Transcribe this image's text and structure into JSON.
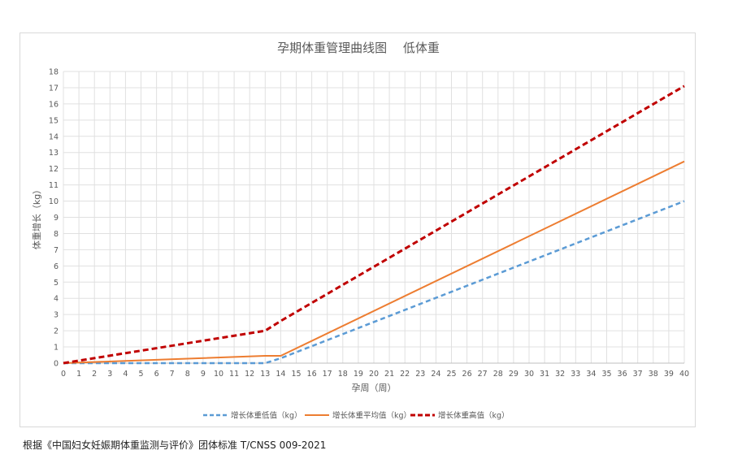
{
  "chart_data": {
    "type": "line",
    "title": "孕期体重管理曲线图　 低体重",
    "xlabel": "孕周（周）",
    "ylabel": "体重增长（kg）",
    "xlim": [
      0,
      40
    ],
    "ylim": [
      0,
      18
    ],
    "x_ticks": [
      0,
      1,
      2,
      3,
      4,
      5,
      6,
      7,
      8,
      9,
      10,
      11,
      12,
      13,
      14,
      15,
      16,
      17,
      18,
      19,
      20,
      21,
      22,
      23,
      24,
      25,
      26,
      27,
      28,
      29,
      30,
      31,
      32,
      33,
      34,
      35,
      36,
      37,
      38,
      39,
      40
    ],
    "y_ticks": [
      0,
      1,
      2,
      3,
      4,
      5,
      6,
      7,
      8,
      9,
      10,
      11,
      12,
      13,
      14,
      15,
      16,
      17,
      18
    ],
    "grid": true,
    "legend_position": "bottom",
    "series": [
      {
        "name": "增长体重低值（kg）",
        "color": "#5b9bd5",
        "style": "dashed",
        "x": [
          0,
          13,
          14,
          40
        ],
        "y": [
          0,
          0,
          0.3,
          10
        ]
      },
      {
        "name": "增长体重平均值（kg）",
        "color": "#ed7d31",
        "style": "solid",
        "x": [
          0,
          13,
          14,
          40
        ],
        "y": [
          0,
          0.45,
          0.45,
          12.45
        ]
      },
      {
        "name": "增长体重高值（kg）",
        "color": "#c00000",
        "style": "dashed",
        "x": [
          0,
          13,
          14,
          40
        ],
        "y": [
          0,
          2,
          2.6,
          17.1
        ]
      }
    ]
  },
  "caption": "根据《中国妇女妊娠期体重监测与评价》团体标准 T/CNSS 009-2021"
}
